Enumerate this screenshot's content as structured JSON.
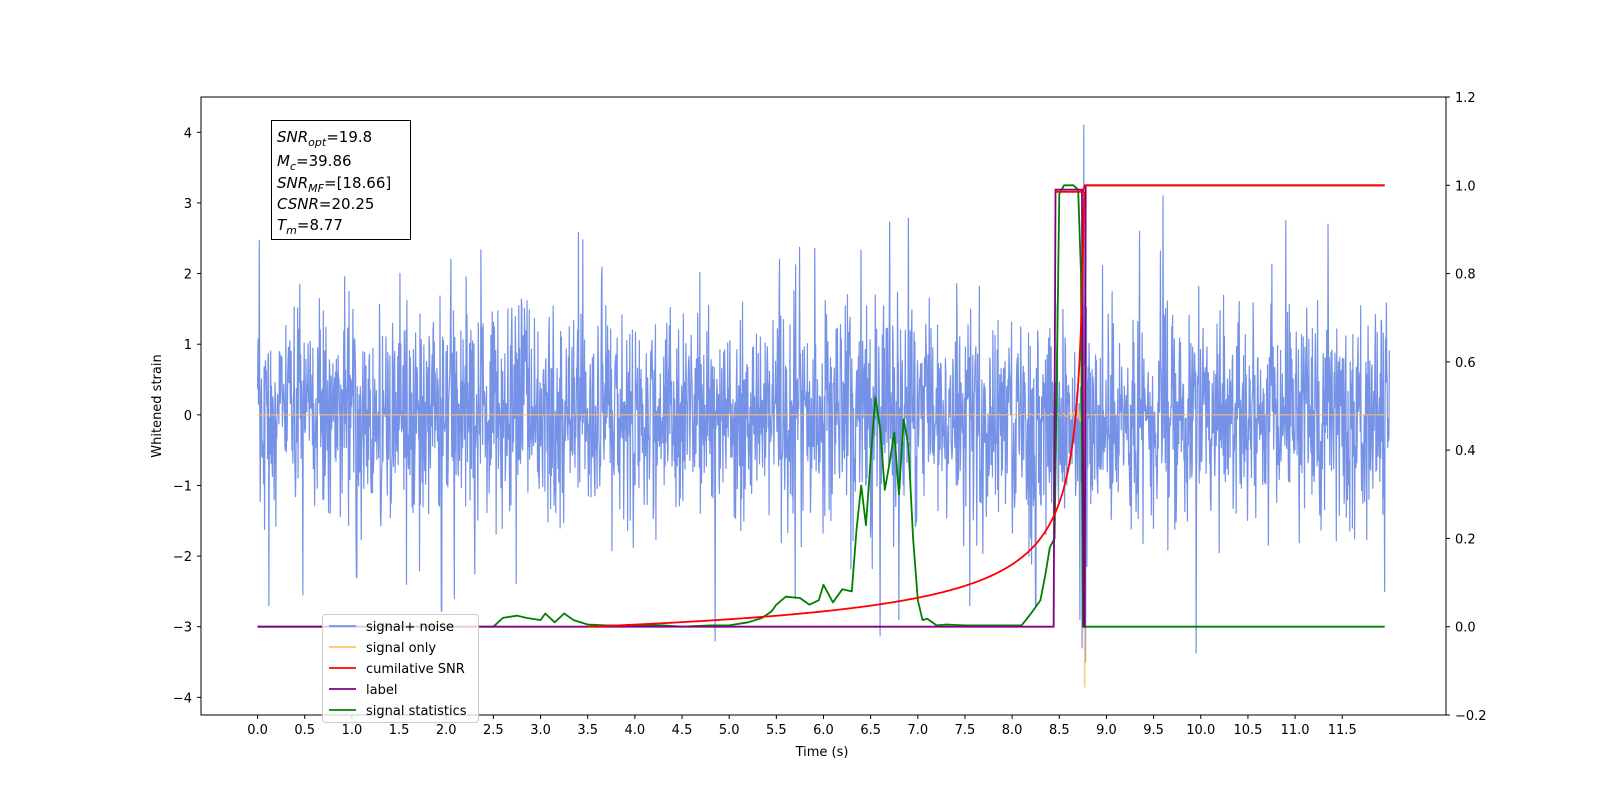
{
  "chart_data": {
    "type": "line",
    "xlabel": "Time (s)",
    "ylabel": "Whitened strain",
    "xlim": [
      -0.6,
      12.6
    ],
    "ylim": [
      -4.25,
      4.5
    ],
    "y2lim": [
      -0.2,
      1.2
    ],
    "xticks": [
      "0.0",
      "0.5",
      "1.0",
      "1.5",
      "2.0",
      "2.5",
      "3.0",
      "3.5",
      "4.0",
      "4.5",
      "5.0",
      "5.5",
      "6.0",
      "6.5",
      "7.0",
      "7.5",
      "8.0",
      "8.5",
      "9.0",
      "9.5",
      "10.0",
      "10.5",
      "11.0",
      "11.5"
    ],
    "yticks": [
      "4",
      "3",
      "2",
      "1",
      "0",
      "−1",
      "−2",
      "−3",
      "−4"
    ],
    "y2ticks": [
      "1.2",
      "1.0",
      "0.8",
      "0.6",
      "0.4",
      "0.2",
      "0.0",
      "−0.2"
    ],
    "annotation": {
      "snr_opt": {
        "base": "SNR",
        "sub": "opt",
        "value": "=19.8"
      },
      "mc": {
        "base": "M",
        "sub": "c",
        "value": "=39.86"
      },
      "snr_mf": {
        "base": "SNR",
        "sub": "MF",
        "value": "=[18.66]"
      },
      "csnr": {
        "base": "CSNR",
        "value": "=20.25"
      },
      "tm": {
        "base": "T",
        "sub": "m",
        "value": "=8.77"
      }
    },
    "legend": {
      "placement": "lower-left",
      "entries": [
        {
          "label": "signal+ noise",
          "color": "#7592e6"
        },
        {
          "label": "signal only",
          "color": "#ffc266"
        },
        {
          "label": "cumilative SNR",
          "color": "#ff0000"
        },
        {
          "label": "label",
          "color": "#800080"
        },
        {
          "label": "signal statistics",
          "color": "#008000"
        }
      ]
    },
    "series": [
      {
        "name": "signal+ noise",
        "axis": "left",
        "color": "#7592e6",
        "kind": "noise",
        "t_start": 0.0,
        "t_end": 12.0,
        "sigma": 0.75,
        "extremes": [
          [
            0.02,
            2.47
          ],
          [
            0.12,
            -2.7
          ],
          [
            0.48,
            -2.55
          ],
          [
            1.05,
            -2.3
          ],
          [
            1.58,
            -2.4
          ],
          [
            1.95,
            -2.78
          ],
          [
            2.05,
            2.2
          ],
          [
            3.4,
            2.58
          ],
          [
            4.85,
            -3.2
          ],
          [
            5.7,
            -2.6
          ],
          [
            6.6,
            -3.13
          ],
          [
            6.7,
            2.73
          ],
          [
            6.8,
            -2.9
          ],
          [
            6.9,
            2.78
          ],
          [
            7.55,
            -2.7
          ],
          [
            8.25,
            -2.7
          ],
          [
            8.72,
            -2.9
          ],
          [
            8.74,
            -3.3
          ],
          [
            8.76,
            4.1
          ],
          [
            8.78,
            -3.5
          ],
          [
            9.35,
            2.6
          ],
          [
            9.6,
            3.1
          ],
          [
            9.95,
            -3.37
          ],
          [
            10.9,
            2.75
          ],
          [
            11.35,
            2.7
          ],
          [
            11.95,
            -2.5
          ]
        ]
      },
      {
        "name": "signal only",
        "axis": "left",
        "color": "#ffc266",
        "kind": "chirp",
        "t_start": 0.0,
        "t_end": 12.0,
        "t_merger": 8.77
      },
      {
        "name": "cumilative SNR",
        "axis": "right",
        "color": "#ff0000",
        "kind": "cumulative",
        "t_start": 3.5,
        "t_merger": 8.77,
        "t_end": 11.95,
        "x": [
          8.45,
          8.75,
          8.77
        ],
        "y": [
          0.985,
          0.985,
          1.0
        ]
      },
      {
        "name": "label",
        "axis": "right",
        "color": "#800080",
        "kind": "step",
        "x": [
          0.0,
          8.44,
          8.46,
          8.74,
          8.76,
          8.77,
          8.78,
          11.95
        ],
        "y": [
          0.0,
          0.0,
          0.99,
          0.99,
          0.0,
          0.0,
          1.0,
          1.0
        ]
      },
      {
        "name": "signal statistics",
        "axis": "right",
        "color": "#008000",
        "x": [
          0.0,
          2.5,
          2.6,
          2.75,
          2.85,
          3.0,
          3.05,
          3.15,
          3.25,
          3.35,
          3.5,
          3.7,
          4.0,
          4.3,
          4.5,
          4.8,
          5.0,
          5.2,
          5.35,
          5.45,
          5.5,
          5.6,
          5.75,
          5.85,
          5.95,
          6.0,
          6.1,
          6.15,
          6.2,
          6.3,
          6.35,
          6.4,
          6.45,
          6.5,
          6.55,
          6.6,
          6.65,
          6.7,
          6.75,
          6.8,
          6.85,
          6.9,
          6.95,
          7.0,
          7.05,
          7.1,
          7.2,
          7.3,
          7.5,
          7.8,
          8.0,
          8.1,
          8.2,
          8.3,
          8.35,
          8.4,
          8.45,
          8.5,
          8.55,
          8.6,
          8.65,
          8.7,
          8.73,
          8.75,
          8.8,
          9.0,
          11.95
        ],
        "y": [
          0.0,
          0.0,
          0.02,
          0.025,
          0.02,
          0.015,
          0.03,
          0.01,
          0.03,
          0.015,
          0.005,
          0.003,
          0.003,
          0.003,
          0.0,
          0.003,
          0.003,
          0.01,
          0.02,
          0.035,
          0.05,
          0.068,
          0.065,
          0.05,
          0.06,
          0.095,
          0.055,
          0.07,
          0.085,
          0.08,
          0.22,
          0.32,
          0.23,
          0.38,
          0.52,
          0.45,
          0.31,
          0.37,
          0.44,
          0.3,
          0.47,
          0.41,
          0.2,
          0.06,
          0.015,
          0.018,
          0.003,
          0.005,
          0.003,
          0.003,
          0.003,
          0.003,
          0.03,
          0.06,
          0.115,
          0.18,
          0.2,
          0.98,
          1.0,
          1.0,
          1.0,
          0.99,
          0.8,
          0.0,
          0.0,
          0.0,
          0.0
        ]
      }
    ]
  }
}
